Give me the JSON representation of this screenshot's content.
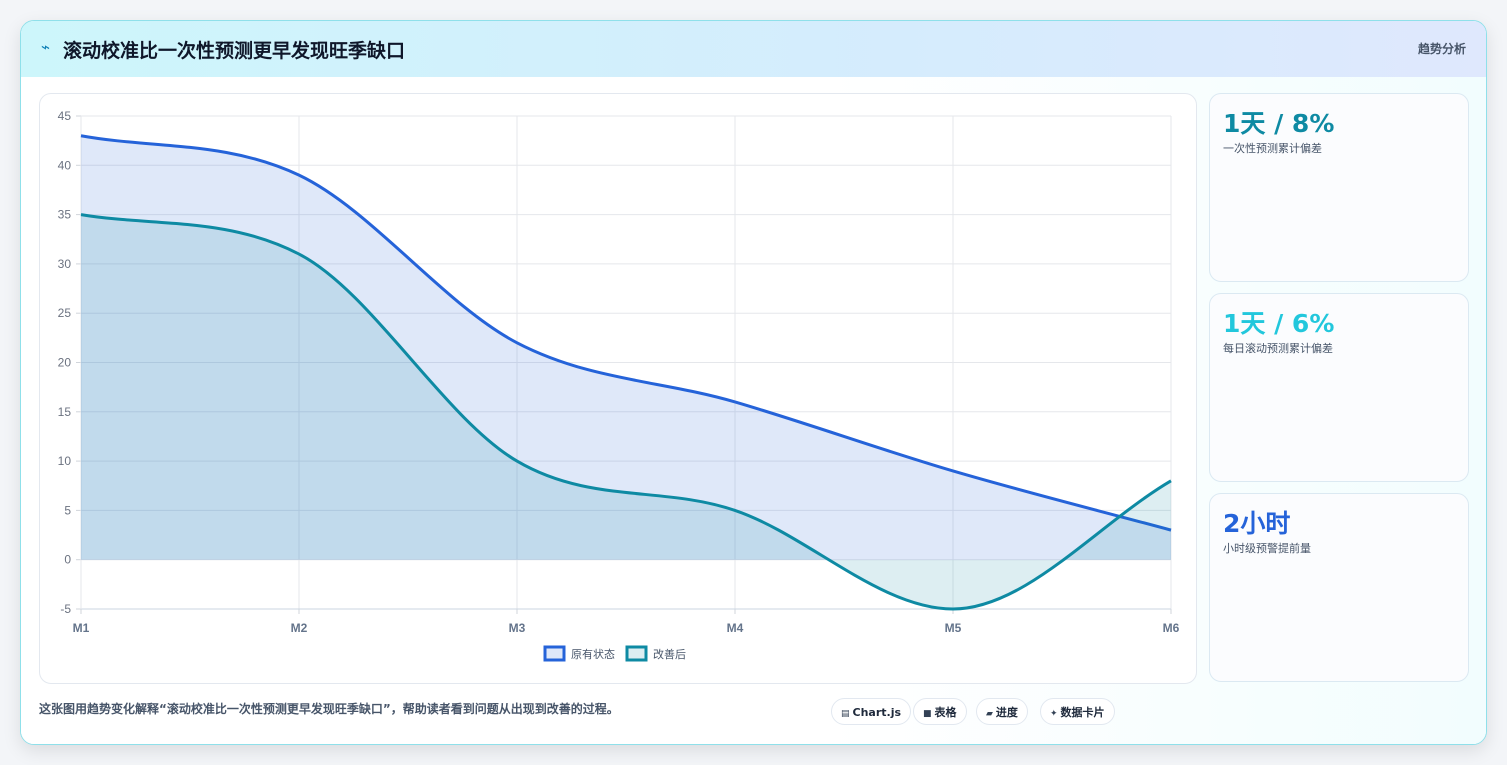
{
  "header": {
    "title": "滚动校准比一次性预测更早发现旺季缺口",
    "tag": "趋势分析"
  },
  "metrics": [
    {
      "value": "1天 / 8%",
      "label": "一次性预测累计偏差",
      "color": "#0e8aa3"
    },
    {
      "value": "1天 / 6%",
      "label": "每日滚动预测累计偏差",
      "color": "#22c7dc"
    },
    {
      "value": "2小时",
      "label": "小时级预警提前量",
      "color": "#2563d9"
    }
  ],
  "caption": "这张图用趋势变化解释“滚动校准比一次性预测更早发现旺季缺口”，帮助读者看到问题从出现到改善的过程。",
  "chips": [
    {
      "icon": "▤",
      "label": "Chart.js"
    },
    {
      "icon": "■",
      "label": "表格"
    },
    {
      "icon": "▰",
      "label": "进度"
    },
    {
      "icon": "✦",
      "label": "数据卡片"
    }
  ],
  "chart_data": {
    "type": "area",
    "categories": [
      "M1",
      "M2",
      "M3",
      "M4",
      "M5",
      "M6"
    ],
    "series": [
      {
        "name": "原有状态",
        "values": [
          43,
          39,
          22,
          16,
          9,
          3
        ],
        "color": "#2563d9",
        "fill": "rgba(37,99,217,0.15)"
      },
      {
        "name": "改善后",
        "values": [
          35,
          31,
          10,
          5,
          -5,
          8
        ],
        "color": "#0e8aa3",
        "fill": "rgba(14,138,163,0.14)"
      }
    ],
    "ylim": [
      -5,
      45
    ],
    "yticks": [
      -5,
      0,
      5,
      10,
      15,
      20,
      25,
      30,
      35,
      40,
      45
    ],
    "grid": true,
    "legend": "bottom"
  }
}
